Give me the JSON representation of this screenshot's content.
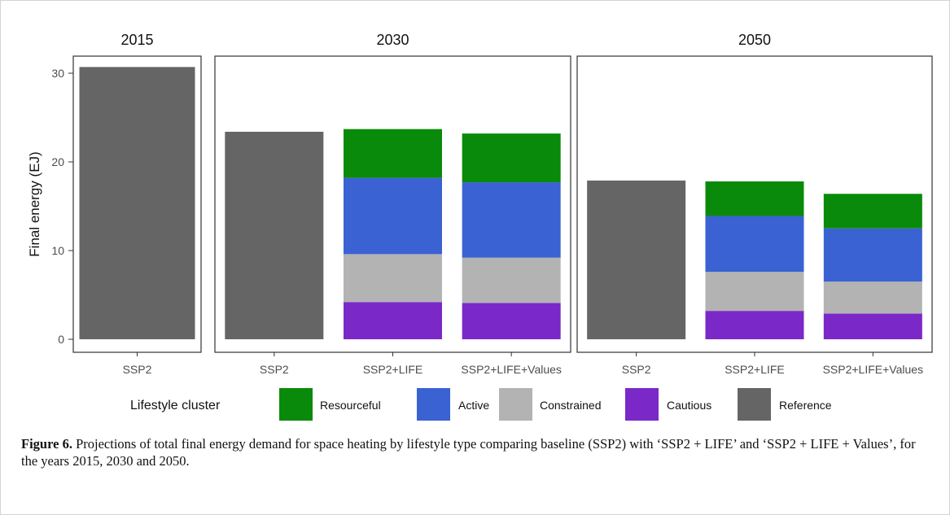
{
  "chart_data": {
    "type": "bar",
    "stacked": true,
    "ylabel": "Final energy (EJ)",
    "ylim": [
      0,
      32
    ],
    "yticks": [
      0,
      10,
      20,
      30
    ],
    "grid": false,
    "legend_placement": "bottom",
    "legend_title": "Lifestyle cluster",
    "series": [
      {
        "name": "Resourceful",
        "color": "#0a8a0a"
      },
      {
        "name": "Active",
        "color": "#3a62d2"
      },
      {
        "name": "Constrained",
        "color": "#b3b3b3"
      },
      {
        "name": "Cautious",
        "color": "#7b28c8"
      },
      {
        "name": "Reference",
        "color": "#656565"
      }
    ],
    "panels": [
      {
        "title": "2015",
        "bars": [
          {
            "label": "SSP2",
            "segments": {
              "Reference": 30.7
            }
          }
        ]
      },
      {
        "title": "2030",
        "bars": [
          {
            "label": "SSP2",
            "segments": {
              "Reference": 23.4
            }
          },
          {
            "label": "SSP2+LIFE",
            "segments": {
              "Cautious": 4.2,
              "Constrained": 5.4,
              "Active": 8.6,
              "Resourceful": 5.5
            }
          },
          {
            "label": "SSP2+LIFE+Values",
            "segments": {
              "Cautious": 4.1,
              "Constrained": 5.1,
              "Active": 8.5,
              "Resourceful": 5.5
            }
          }
        ]
      },
      {
        "title": "2050",
        "bars": [
          {
            "label": "SSP2",
            "segments": {
              "Reference": 17.9
            }
          },
          {
            "label": "SSP2+LIFE",
            "segments": {
              "Cautious": 3.2,
              "Constrained": 4.4,
              "Active": 6.3,
              "Resourceful": 3.9
            }
          },
          {
            "label": "SSP2+LIFE+Values",
            "segments": {
              "Cautious": 2.9,
              "Constrained": 3.6,
              "Active": 6.0,
              "Resourceful": 3.9
            }
          }
        ]
      }
    ]
  },
  "caption": {
    "label": "Figure 6.",
    "text": " Projections of total final energy demand for space heating by lifestyle type comparing baseline (SSP2) with ‘SSP2 + LIFE’ and ‘SSP2 + LIFE + Values’, for the years 2015, 2030 and 2050."
  }
}
